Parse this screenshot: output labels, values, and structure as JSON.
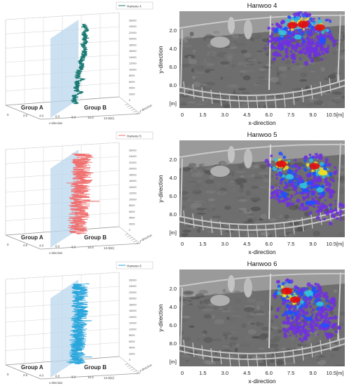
{
  "chart_data": [
    {
      "type": "line",
      "panel": "3d-trajectory",
      "legend": "Hanwoo 4",
      "color": "#1a7a73",
      "group_labels": [
        "Group A",
        "Group B"
      ],
      "x_ticks": [
        "0",
        "2.0",
        "4.0",
        "6.0",
        "8.0",
        "10.0",
        "12.0[m]"
      ],
      "xlabel": "x-direction",
      "depth_label": "y-direction",
      "t_ticks": [
        "0",
        "2000",
        "4000",
        "6000",
        "8000",
        "10000",
        "12000",
        "14000",
        "16000",
        "18000",
        "20000",
        "22000",
        "24000",
        "26000"
      ],
      "xlim": [
        0,
        12
      ],
      "tlim": [
        0,
        27000
      ],
      "amplitude": 0.45,
      "wiggle_x": [
        [
          0,
          8.4
        ],
        [
          600,
          8.6
        ],
        [
          1500,
          8.2
        ],
        [
          2500,
          8.5
        ],
        [
          3500,
          8.3
        ],
        [
          4200,
          9.5
        ],
        [
          4800,
          8.6
        ],
        [
          5500,
          8.5
        ],
        [
          6500,
          8.8
        ],
        [
          7500,
          8.6
        ],
        [
          8500,
          9.6
        ],
        [
          9000,
          8.7
        ],
        [
          10000,
          8.8
        ],
        [
          11000,
          9.0
        ],
        [
          12000,
          9.2
        ],
        [
          13000,
          9.6
        ],
        [
          14000,
          9.3
        ],
        [
          15000,
          9.5
        ],
        [
          16500,
          9.8
        ],
        [
          18000,
          9.9
        ],
        [
          19500,
          9.7
        ],
        [
          20500,
          10.0
        ],
        [
          21500,
          9.8
        ],
        [
          22500,
          10.1
        ],
        [
          23500,
          9.7
        ],
        [
          24500,
          10.2
        ],
        [
          25500,
          9.9
        ],
        [
          26500,
          10.0
        ]
      ]
    },
    {
      "type": "line",
      "panel": "3d-trajectory",
      "legend": "Hanwoo 5",
      "color": "#f07070",
      "group_labels": [
        "Group A",
        "Group B"
      ],
      "x_ticks": [
        "0",
        "2.0",
        "4.0",
        "6.0",
        "8.0",
        "10.0",
        "12.0[m]"
      ],
      "xlabel": "x-direction",
      "depth_label": "y-direction",
      "t_ticks": [
        "0",
        "2000",
        "4000",
        "6000",
        "8000",
        "10000",
        "12000",
        "14000",
        "16000",
        "18000",
        "20000",
        "22000",
        "24000",
        "26000"
      ],
      "xlim": [
        0,
        12
      ],
      "tlim": [
        0,
        27000
      ],
      "amplitude": 1.6,
      "wiggle_x": [
        [
          0,
          8.6
        ],
        [
          2000,
          8.9
        ],
        [
          4000,
          8.7
        ],
        [
          6000,
          9.1
        ],
        [
          8000,
          8.9
        ],
        [
          10000,
          9.3
        ],
        [
          12000,
          9.1
        ],
        [
          14000,
          9.4
        ],
        [
          16000,
          9.2
        ],
        [
          18000,
          9.5
        ],
        [
          20000,
          9.3
        ],
        [
          22000,
          9.6
        ],
        [
          24000,
          9.4
        ],
        [
          26000,
          9.5
        ]
      ]
    },
    {
      "type": "line",
      "panel": "3d-trajectory",
      "legend": "Hanwoo 6",
      "color": "#2aa6dc",
      "group_labels": [
        "Group A",
        "Group B"
      ],
      "x_ticks": [
        "0",
        "2.0",
        "4.0",
        "6.0",
        "8.0",
        "10.0",
        "12.0[m]"
      ],
      "xlabel": "x-direction",
      "depth_label": "y-direction",
      "t_ticks": [
        "0",
        "2000",
        "4000",
        "6000",
        "8000",
        "10000",
        "12000",
        "14000",
        "16000",
        "18000",
        "20000",
        "22000",
        "24000",
        "26000"
      ],
      "xlim": [
        0,
        12
      ],
      "tlim": [
        0,
        27000
      ],
      "amplitude": 1.3,
      "wiggle_x": [
        [
          0,
          8.6
        ],
        [
          2000,
          8.8
        ],
        [
          4000,
          8.7
        ],
        [
          6000,
          8.9
        ],
        [
          8000,
          8.8
        ],
        [
          10000,
          9.0
        ],
        [
          12000,
          8.9
        ],
        [
          14000,
          9.1
        ],
        [
          16000,
          9.0
        ],
        [
          18000,
          9.2
        ],
        [
          20000,
          9.1
        ],
        [
          22000,
          9.2
        ],
        [
          24000,
          9.1
        ],
        [
          26000,
          9.2
        ]
      ]
    },
    {
      "type": "heatmap",
      "panel": "pen-heatmap",
      "title": "Hanwoo 4",
      "xlabel": "x-direction",
      "ylabel": "y-direction",
      "x_ticks": [
        "0",
        "1.5",
        "3.0",
        "4.5",
        "6.0",
        "7.5",
        "9.0",
        "10.5[m]"
      ],
      "y_ticks": [
        "2.0",
        "4.0",
        "6.0",
        "8.0",
        "[m]"
      ],
      "xlim": [
        0,
        12
      ],
      "ylim": [
        0,
        9
      ],
      "hot_spots": [
        {
          "x": 8.2,
          "y": 1.3,
          "v": 0.9
        },
        {
          "x": 9.0,
          "y": 1.2,
          "v": 1.0
        },
        {
          "x": 10.2,
          "y": 1.5,
          "v": 0.85
        },
        {
          "x": 7.5,
          "y": 2.0,
          "v": 0.6
        },
        {
          "x": 8.6,
          "y": 2.4,
          "v": 0.5
        },
        {
          "x": 10.4,
          "y": 2.7,
          "v": 0.4
        },
        {
          "x": 7.3,
          "y": 3.4,
          "v": 0.3
        },
        {
          "x": 8.8,
          "y": 3.8,
          "v": 0.25
        },
        {
          "x": 9.8,
          "y": 3.5,
          "v": 0.3
        }
      ]
    },
    {
      "type": "heatmap",
      "panel": "pen-heatmap",
      "title": "Hanwoo 5",
      "xlabel": "x-direction",
      "ylabel": "y-direction",
      "x_ticks": [
        "0",
        "1.5",
        "3.0",
        "4.5",
        "6.0",
        "7.5",
        "9.0",
        "10.5[m]"
      ],
      "y_ticks": [
        "2.0",
        "4.0",
        "6.0",
        "8.0",
        "[m]"
      ],
      "xlim": [
        0,
        12
      ],
      "ylim": [
        0,
        9
      ],
      "hot_spots": [
        {
          "x": 7.4,
          "y": 2.2,
          "v": 0.95
        },
        {
          "x": 9.8,
          "y": 2.4,
          "v": 0.9
        },
        {
          "x": 10.4,
          "y": 3.0,
          "v": 0.7
        },
        {
          "x": 8.0,
          "y": 3.4,
          "v": 0.6
        },
        {
          "x": 9.0,
          "y": 4.2,
          "v": 0.55
        },
        {
          "x": 10.2,
          "y": 4.6,
          "v": 0.5
        },
        {
          "x": 7.6,
          "y": 5.0,
          "v": 0.4
        },
        {
          "x": 9.6,
          "y": 5.8,
          "v": 0.35
        },
        {
          "x": 11.0,
          "y": 6.6,
          "v": 0.3
        }
      ]
    },
    {
      "type": "heatmap",
      "panel": "pen-heatmap",
      "title": "Hanwoo 6",
      "xlabel": "x-direction",
      "ylabel": "y-direction",
      "x_ticks": [
        "0",
        "1.5",
        "3.0",
        "4.5",
        "6.0",
        "7.5",
        "9.0",
        "10.5[m]"
      ],
      "y_ticks": [
        "2.0",
        "4.0",
        "6.0",
        "8.0",
        "[m]"
      ],
      "xlim": [
        0,
        12
      ],
      "ylim": [
        0,
        9
      ],
      "hot_spots": [
        {
          "x": 7.8,
          "y": 2.0,
          "v": 1.0
        },
        {
          "x": 8.4,
          "y": 2.8,
          "v": 0.9
        },
        {
          "x": 9.4,
          "y": 2.2,
          "v": 0.6
        },
        {
          "x": 10.2,
          "y": 3.2,
          "v": 0.5
        },
        {
          "x": 8.0,
          "y": 4.0,
          "v": 0.45
        },
        {
          "x": 9.4,
          "y": 4.6,
          "v": 0.4
        },
        {
          "x": 10.6,
          "y": 5.2,
          "v": 0.35
        },
        {
          "x": 8.6,
          "y": 5.6,
          "v": 0.3
        }
      ]
    }
  ]
}
